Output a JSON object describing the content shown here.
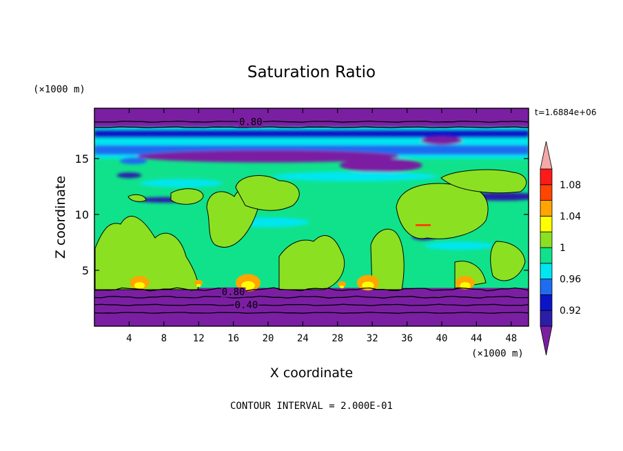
{
  "chart_data": {
    "type": "heatmap",
    "title": "Saturation Ratio",
    "xlabel": "X coordinate",
    "ylabel": "Z coordinate",
    "x_unit": "(×1000 m)",
    "y_unit": "(×1000 m)",
    "time_label": "t=1.6884e+06",
    "footer": "CONTOUR INTERVAL = 2.000E-01",
    "xlim": [
      0,
      50
    ],
    "ylim": [
      0,
      19.5
    ],
    "x_ticks": [
      4,
      8,
      12,
      16,
      20,
      24,
      28,
      32,
      36,
      40,
      44,
      48
    ],
    "y_ticks": [
      5,
      10,
      15
    ],
    "colorbar_labels": [
      {
        "value": 1.08,
        "text": "1.08"
      },
      {
        "value": 1.04,
        "text": "1.04"
      },
      {
        "value": 1.0,
        "text": "1"
      },
      {
        "value": 0.96,
        "text": "0.96"
      },
      {
        "value": 0.92,
        "text": "0.92"
      }
    ],
    "colorbar_levels": [
      0.9,
      0.92,
      0.94,
      0.96,
      0.98,
      1.0,
      1.02,
      1.04,
      1.06,
      1.08,
      1.1
    ],
    "colorbar_colors": [
      "#7b1fa2",
      "#2a1ea8",
      "#0c14c8",
      "#1f6cf0",
      "#00e6f0",
      "#10e28c",
      "#8be022",
      "#ffff00",
      "#ffa500",
      "#ff4500",
      "#ff1a1a",
      "#f4a8a8"
    ],
    "contour_labels": [
      {
        "x": 18,
        "y": 18.3,
        "text": "0.80"
      },
      {
        "x": 16,
        "y": 3.1,
        "text": "0.80"
      },
      {
        "x": 17.5,
        "y": 1.9,
        "text": "0.40"
      }
    ],
    "layers": {
      "bottom_band": [
        0,
        3.3
      ],
      "top_band": [
        17.8,
        19.5
      ]
    }
  }
}
